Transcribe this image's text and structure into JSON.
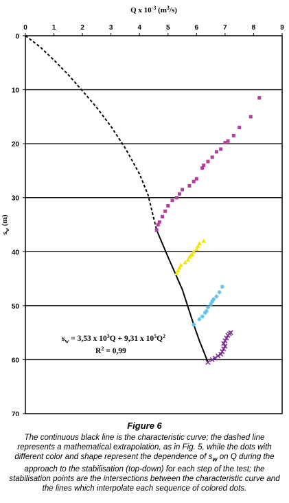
{
  "chart_data": {
    "type": "scatter",
    "title": "",
    "xlabel": "Q x 10",
    "xlabel_sup": "-3",
    "xlabel_unit": " (m",
    "xlabel_unit_sup": "3",
    "xlabel_end": "/s)",
    "ylabel": "s",
    "ylabel_sub": "w",
    "ylabel_unit": " (m)",
    "x_axis_position": "top",
    "y_inverted": true,
    "xlim": [
      0,
      9
    ],
    "ylim": [
      0,
      70
    ],
    "x_ticks": [
      "0",
      "1",
      "2",
      "3",
      "4",
      "5",
      "6",
      "7",
      "8",
      "9"
    ],
    "y_ticks": [
      "0",
      "10",
      "20",
      "30",
      "40",
      "50",
      "60",
      "70"
    ],
    "grid": "horizontal",
    "curve": {
      "continuous_from_Q": 4.6,
      "points": [
        [
          0,
          0
        ],
        [
          0.5,
          2.0
        ],
        [
          1,
          4.5
        ],
        [
          1.5,
          7.2
        ],
        [
          2,
          10.2
        ],
        [
          2.5,
          13.3
        ],
        [
          3,
          16.8
        ],
        [
          3.5,
          20.8
        ],
        [
          4,
          25.6
        ],
        [
          4.3,
          29.5
        ],
        [
          4.6,
          36
        ],
        [
          5,
          41
        ],
        [
          5.5,
          47
        ],
        [
          5.9,
          53.5
        ],
        [
          6.1,
          56.5
        ],
        [
          6.4,
          60.5
        ]
      ]
    },
    "series": [
      {
        "color": "#b0409c",
        "marker": "square",
        "points": [
          [
            4.6,
            36
          ],
          [
            4.65,
            35
          ],
          [
            4.7,
            34.5
          ],
          [
            4.8,
            33.5
          ],
          [
            4.9,
            32.5
          ],
          [
            5,
            31.5
          ],
          [
            5.15,
            30.5
          ],
          [
            5.3,
            30
          ],
          [
            5.4,
            29.3
          ],
          [
            5.5,
            28.5
          ],
          [
            5.75,
            27.8
          ],
          [
            5.9,
            27
          ],
          [
            6,
            26.5
          ],
          [
            6.2,
            24.5
          ],
          [
            6.25,
            24
          ],
          [
            6.4,
            23.3
          ],
          [
            6.55,
            22.5
          ],
          [
            6.7,
            21.5
          ],
          [
            6.85,
            21
          ],
          [
            7,
            19.8
          ],
          [
            7.1,
            19.5
          ],
          [
            7.3,
            18.5
          ],
          [
            7.5,
            17
          ],
          [
            7.9,
            15
          ],
          [
            8.2,
            11.5
          ]
        ]
      },
      {
        "color": "#f2e600",
        "marker": "triangle",
        "points": [
          [
            5.3,
            44
          ],
          [
            5.35,
            43.5
          ],
          [
            5.4,
            43
          ],
          [
            5.45,
            42.5
          ],
          [
            5.6,
            42
          ],
          [
            5.7,
            41.5
          ],
          [
            5.75,
            41
          ],
          [
            5.8,
            40.7
          ],
          [
            5.85,
            40.5
          ],
          [
            5.9,
            40
          ],
          [
            6,
            39.5
          ],
          [
            6.05,
            39
          ],
          [
            6.1,
            38.5
          ],
          [
            6.25,
            38
          ]
        ]
      },
      {
        "color": "#5fc2e6",
        "marker": "star",
        "points": [
          [
            5.9,
            53.5
          ],
          [
            6.1,
            52.5
          ],
          [
            6.2,
            52
          ],
          [
            6.3,
            51.3
          ],
          [
            6.35,
            51
          ],
          [
            6.4,
            50.3
          ],
          [
            6.5,
            49.7
          ],
          [
            6.55,
            49.2
          ],
          [
            6.6,
            48.8
          ],
          [
            6.7,
            48.3
          ],
          [
            6.8,
            47.5
          ],
          [
            6.9,
            46.5
          ]
        ]
      },
      {
        "color": "#7a2f8f",
        "marker": "cross",
        "points": [
          [
            6.4,
            60.5
          ],
          [
            6.55,
            60
          ],
          [
            6.65,
            59.7
          ],
          [
            6.75,
            59.3
          ],
          [
            6.85,
            59
          ],
          [
            6.9,
            58.5
          ],
          [
            6.95,
            58
          ],
          [
            7,
            57.5
          ],
          [
            6.95,
            57
          ],
          [
            7,
            56.5
          ],
          [
            7.05,
            56
          ],
          [
            7.1,
            55.5
          ],
          [
            7.15,
            55.2
          ],
          [
            7.2,
            55
          ]
        ]
      }
    ],
    "annotation": {
      "line1_prefix": "s",
      "line1_sub": "w",
      "line1_a": " = 3,53 x 10",
      "line1_sup1": "3",
      "line1_b": "Q + 9,31 x 10",
      "line1_sup2": "5",
      "line1_c": "Q",
      "line1_sup3": "2",
      "line2": "R",
      "line2_sup": "2",
      "line2_b": " = 0,99"
    }
  },
  "caption": {
    "title": "Figure 6",
    "text": "The continuous black line is the characteristic curve; the dashed line represents a mathematical extrapolation, as in Fig. 5, while the dots with different color and shape represent the dependence of s",
    "text_sub": "w",
    "text_rest": " on Q during the approach to the stabilisation (top-down) for each step of the test; the stabilisation points are the intersections between the characteristic curve and the lines which interpolate each sequence of colored dots."
  }
}
